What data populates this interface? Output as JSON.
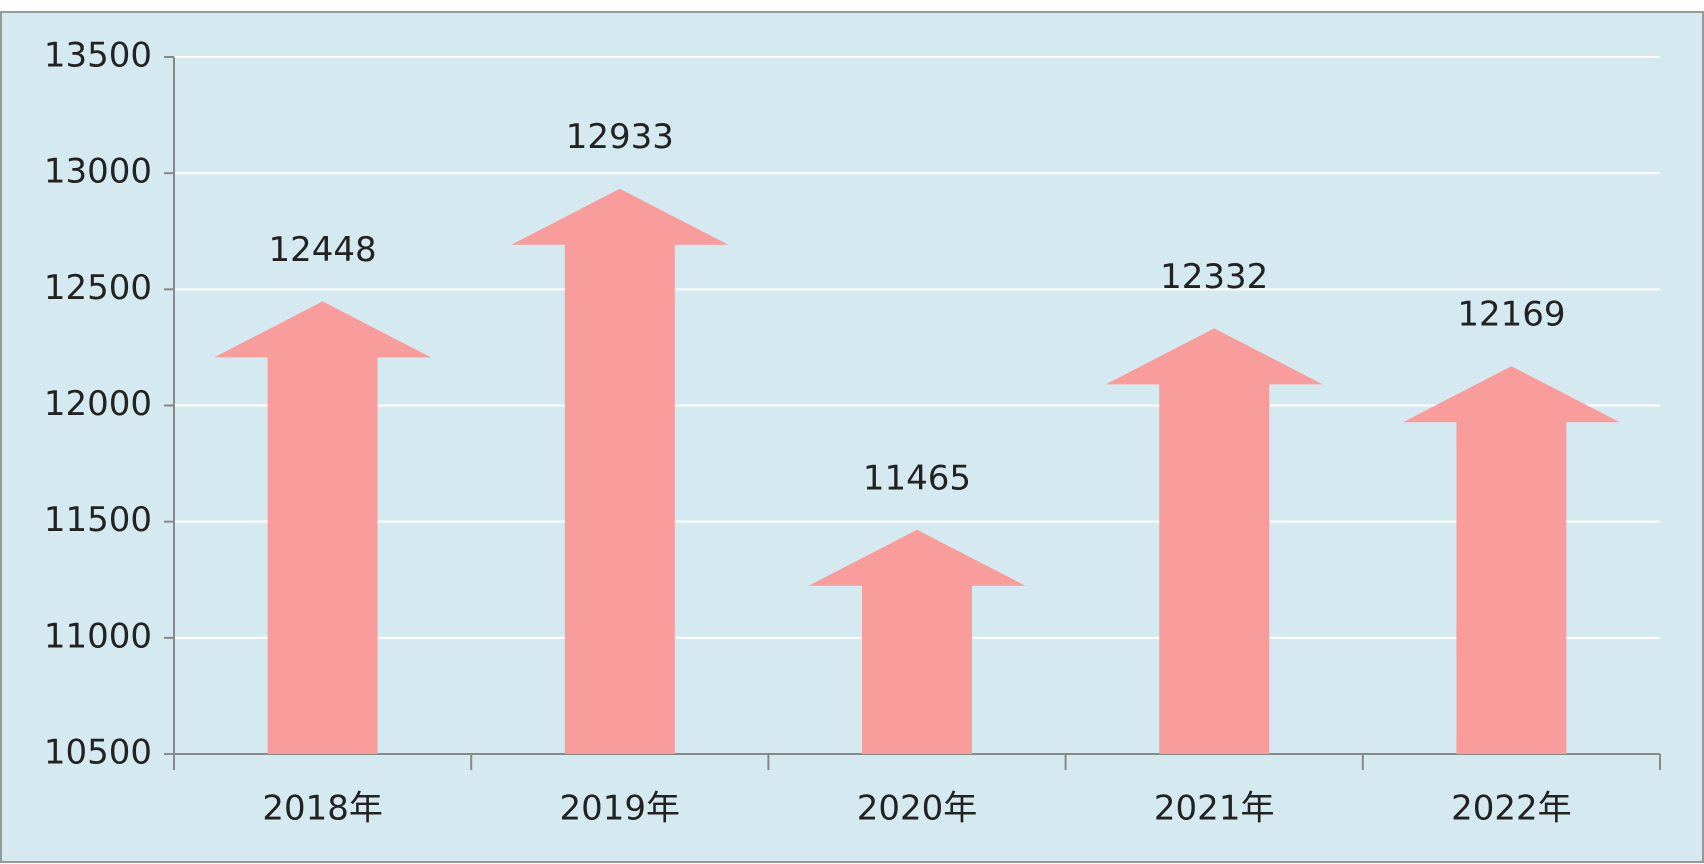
{
  "chart_data": {
    "type": "bar",
    "categories": [
      "2018年",
      "2019年",
      "2020年",
      "2021年",
      "2022年"
    ],
    "values": [
      12448,
      12933,
      11465,
      12332,
      12169
    ],
    "color": "#f99c9c",
    "ylim": [
      10500,
      13500
    ],
    "yticks": [
      10500,
      11000,
      11500,
      12000,
      12500,
      13000,
      13500
    ],
    "grid": true
  }
}
